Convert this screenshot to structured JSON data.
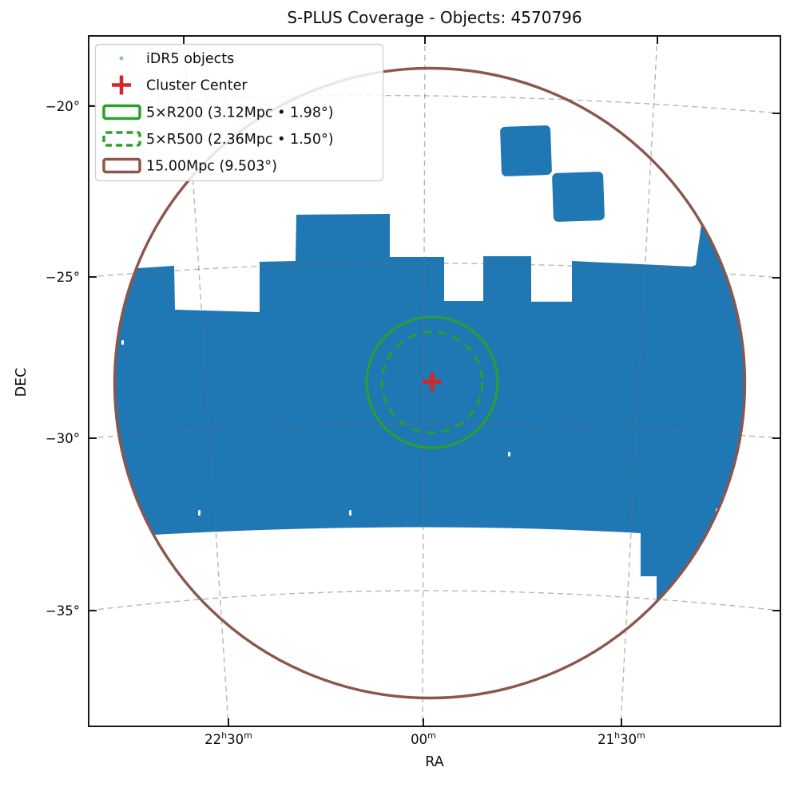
{
  "figure": {
    "title": "S-PLUS Coverage - Objects: 4570796",
    "x_axis": {
      "label": "RA",
      "ticks": [
        "22h30m",
        "00m",
        "21h30m"
      ]
    },
    "y_axis": {
      "label": "DEC",
      "ticks": [
        "−20°",
        "−25°",
        "−30°",
        "−35°"
      ]
    },
    "legend": {
      "items": [
        {
          "label": "iDR5 objects",
          "marker": "scatter-dot",
          "color": "#1f77b4"
        },
        {
          "label": "Cluster Center",
          "marker": "plus",
          "color": "#d62728"
        },
        {
          "label": "5×R200 (3.12Mpc • 1.98°)",
          "marker": "rect-outline",
          "color": "#2ca02c"
        },
        {
          "label": "5×R500 (2.36Mpc • 1.50°)",
          "marker": "rect-dashed",
          "color": "#2ca02c"
        },
        {
          "label": "15.00Mpc (9.503°)",
          "marker": "rect-outline",
          "color": "#8c564b"
        }
      ]
    }
  },
  "chart_data": {
    "type": "scatter",
    "title": "S-PLUS Coverage - Objects: 4570796",
    "xlabel": "RA",
    "ylabel": "DEC",
    "x_tick_labels": [
      "22h30m",
      "00m",
      "21h30m"
    ],
    "y_tick_labels_deg": [
      -20,
      -25,
      -30,
      -35
    ],
    "object_count": 4570796,
    "catalog": "iDR5",
    "grid": "dashed curvilinear RA/DEC graticule",
    "legend_position": "upper left",
    "coverage_fill_color": "#1f77b4",
    "cluster_center": {
      "marker": "+",
      "color": "#d62728"
    },
    "overlays": [
      {
        "name": "5×R200",
        "radius_mpc": 3.12,
        "radius_deg": 1.98,
        "line_style": "solid",
        "color": "#2ca02c"
      },
      {
        "name": "5×R500",
        "radius_mpc": 2.36,
        "radius_deg": 1.5,
        "line_style": "dashed",
        "color": "#2ca02c"
      },
      {
        "name": "15.00Mpc",
        "radius_mpc": 15.0,
        "radius_deg": 9.503,
        "line_style": "solid",
        "color": "#8c564b"
      }
    ]
  },
  "colors": {
    "blue": "#1f77b4",
    "green": "#2ca02c",
    "brown": "#8c564b",
    "red": "#d62728"
  }
}
